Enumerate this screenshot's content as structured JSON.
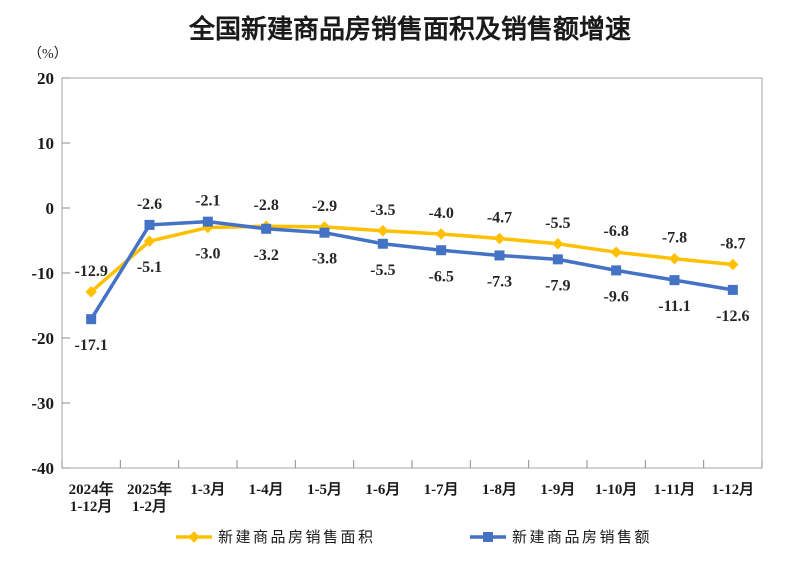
{
  "chart_data": {
    "type": "line",
    "title": "全国新建商品房销售面积及销售额增速",
    "unit_label": "（%）",
    "categories": [
      [
        "2024年",
        "1-12月"
      ],
      [
        "2025年",
        "1-2月"
      ],
      [
        "1-3月"
      ],
      [
        "1-4月"
      ],
      [
        "1-5月"
      ],
      [
        "1-6月"
      ],
      [
        "1-7月"
      ],
      [
        "1-8月"
      ],
      [
        "1-9月"
      ],
      [
        "1-10月"
      ],
      [
        "1-11月"
      ],
      [
        "1-12月"
      ]
    ],
    "y_axis": {
      "min": -40,
      "max": 20,
      "step": 10,
      "ticks": [
        20,
        10,
        0,
        -10,
        -20,
        -30,
        -40
      ]
    },
    "series": [
      {
        "name": "新建商品房销售面积",
        "color": "#FFC000",
        "marker": "diamond",
        "values": [
          -12.9,
          -5.1,
          -3.0,
          -2.8,
          -2.9,
          -3.5,
          -4.0,
          -4.7,
          -5.5,
          -6.8,
          -7.8,
          -8.7
        ]
      },
      {
        "name": "新建商品房销售额",
        "color": "#4472C4",
        "marker": "square",
        "values": [
          -17.1,
          -2.6,
          -2.1,
          -3.2,
          -3.8,
          -5.5,
          -6.5,
          -7.3,
          -7.9,
          -9.6,
          -11.1,
          -12.6
        ]
      }
    ],
    "legend_position": "bottom",
    "grid": "off",
    "label_format": "one-decimal"
  }
}
